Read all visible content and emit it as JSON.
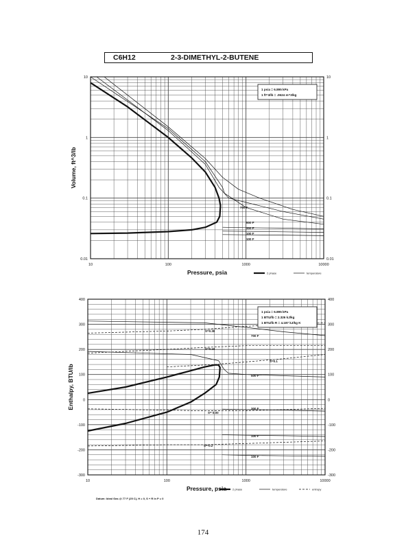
{
  "header": {
    "formula": "C6H12",
    "compound": "2-3-DIMETHYL-2-BUTENE"
  },
  "page_number": "174",
  "chart_data": [
    {
      "type": "line",
      "xscale": "log",
      "yscale": "log",
      "xlim": [
        10,
        10000
      ],
      "ylim": [
        0.01,
        10
      ],
      "xlabel": "Pressure,  psia",
      "ylabel": "Volume,  ft^3/lb",
      "x_ticks": [
        "10",
        "100",
        "1000",
        "10000"
      ],
      "y_ticks": [
        "0.01",
        "0.1",
        "1",
        "10"
      ],
      "grid": true,
      "conversion_box": [
        "1 psia  =  6.895 kPa",
        "1 ft^3/lb  =  .0624 m^3/kg"
      ],
      "legend": [
        {
          "label": "2 phase",
          "style": "thick"
        },
        {
          "label": "temperature",
          "style": "thin"
        }
      ],
      "isotherm_labels": [
        "700 F",
        "500 F",
        "300 F",
        "100 F",
        "100 F"
      ],
      "series": [
        {
          "name": "2 phase",
          "style": "thick",
          "x": [
            10,
            30,
            100,
            200,
            300,
            400,
            450,
            470,
            460,
            420,
            300,
            200,
            100,
            30,
            10
          ],
          "y": [
            8,
            3.2,
            1.0,
            0.46,
            0.27,
            0.15,
            0.1,
            0.075,
            0.05,
            0.04,
            0.033,
            0.03,
            0.028,
            0.0265,
            0.026
          ]
        },
        {
          "name": "temperature",
          "style": "thin",
          "x": [
            10,
            100,
            300,
            500,
            530,
            1000,
            3000,
            10000
          ],
          "y": [
            10,
            1.4,
            0.4,
            0.15,
            0.12,
            0.07,
            0.045,
            0.037
          ]
        },
        {
          "name": "temperature",
          "style": "thin",
          "x": [
            12,
            100,
            300,
            450,
            600,
            1000,
            3000,
            10000
          ],
          "y": [
            10,
            1.3,
            0.36,
            0.15,
            0.1,
            0.085,
            0.06,
            0.045
          ]
        },
        {
          "name": "temperature",
          "style": "thin",
          "x": [
            15,
            100,
            300,
            500,
            800,
            1500,
            4000,
            10000
          ],
          "y": [
            10,
            1.5,
            0.45,
            0.22,
            0.14,
            0.1,
            0.065,
            0.05
          ]
        },
        {
          "name": "temperature",
          "style": "thin",
          "x": [
            500,
            1000,
            3000,
            10000
          ],
          "y": [
            0.033,
            0.0325,
            0.032,
            0.031
          ]
        },
        {
          "name": "temperature",
          "style": "thin",
          "x": [
            500,
            1000,
            3000,
            10000
          ],
          "y": [
            0.0285,
            0.0282,
            0.0278,
            0.0272
          ]
        },
        {
          "name": "temperature",
          "style": "thin",
          "x": [
            500,
            1000,
            3000,
            10000
          ],
          "y": [
            0.025,
            0.0248,
            0.0245,
            0.024
          ]
        }
      ]
    },
    {
      "type": "line",
      "xscale": "log",
      "xlim": [
        10,
        10000
      ],
      "ylim": [
        -300,
        400
      ],
      "xlabel": "Pressure,  psia",
      "ylabel": "Enthalpy,  BTU/lb",
      "x_ticks": [
        "10",
        "100",
        "1000",
        "10000"
      ],
      "y_ticks": [
        "-300",
        "-200",
        "-100",
        "0",
        "100",
        "200",
        "300",
        "400"
      ],
      "grid": true,
      "conversion_box": [
        "1 psia  =  6.895 kPa",
        "1 BTU/lb  =  2.326 kJ/kg",
        "1 BTU/lb R  =  4.187 kJ/kg K"
      ],
      "legend": [
        {
          "label": "2 phase",
          "style": "thick"
        },
        {
          "label": "temperature",
          "style": "thin"
        },
        {
          "label": "entropy",
          "style": "dashed"
        }
      ],
      "datum_note": "Datum: Ideal Gas @ 77 F (25 C),  H = 0,  S + R ln P = 0",
      "isotherm_labels": [
        "700 F",
        "500 F",
        "300 F",
        "100 F",
        "100 F"
      ],
      "entropy_labels": [
        "S=0.38",
        "S=0.18",
        "S=0.1",
        "S= 0.00",
        "S=-0.2"
      ],
      "series": [
        {
          "name": "2 phase",
          "style": "thick",
          "x": [
            10,
            30,
            100,
            200,
            300,
            400,
            450,
            470,
            460,
            420,
            300,
            200,
            100,
            30,
            10
          ],
          "y": [
            25,
            50,
            90,
            115,
            130,
            138,
            138,
            128,
            90,
            60,
            25,
            -10,
            -50,
            -95,
            -125
          ]
        },
        {
          "name": "temperature",
          "style": "thin",
          "x": [
            10,
            300,
            1000,
            3000,
            10000
          ],
          "y": [
            313,
            306,
            288,
            270,
            255
          ]
        },
        {
          "name": "temperature",
          "style": "thin",
          "x": [
            10,
            200,
            450,
            530,
            600,
            1000,
            3000,
            10000
          ],
          "y": [
            192,
            180,
            155,
            120,
            105,
            100,
            95,
            90
          ]
        },
        {
          "name": "temperature",
          "style": "thin",
          "x": [
            500,
            1000,
            3000,
            10000
          ],
          "y": [
            -38,
            -40,
            -42,
            -46
          ]
        },
        {
          "name": "temperature",
          "style": "thin",
          "x": [
            500,
            1000,
            3000,
            10000
          ],
          "y": [
            -140,
            -142,
            -144,
            -147
          ]
        },
        {
          "name": "temperature",
          "style": "thin",
          "x": [
            500,
            1000,
            3000,
            10000
          ],
          "y": [
            -220,
            -222,
            -224,
            -226
          ]
        },
        {
          "name": "entropy",
          "style": "dashed",
          "x": [
            10,
            100,
            300,
            1000,
            3000,
            10000
          ],
          "y": [
            265,
            273,
            280,
            292,
            300,
            306
          ]
        },
        {
          "name": "entropy",
          "style": "dashed",
          "x": [
            10,
            100,
            300,
            1000,
            3000,
            10000
          ],
          "y": [
            185,
            200,
            208,
            215,
            215,
            215
          ]
        },
        {
          "name": "entropy",
          "style": "dashed",
          "x": [
            100,
            400,
            1000,
            3000,
            10000
          ],
          "y": [
            130,
            140,
            150,
            163,
            180
          ]
        },
        {
          "name": "entropy",
          "style": "dashed",
          "x": [
            10,
            100,
            300,
            1000,
            3000,
            10000
          ],
          "y": [
            -37,
            -42,
            -45,
            -44,
            -40,
            -35
          ]
        },
        {
          "name": "entropy",
          "style": "dashed",
          "x": [
            10,
            100,
            300,
            1000,
            3000,
            10000
          ],
          "y": [
            -185,
            -180,
            -180,
            -175,
            -170,
            -165
          ]
        }
      ]
    }
  ]
}
